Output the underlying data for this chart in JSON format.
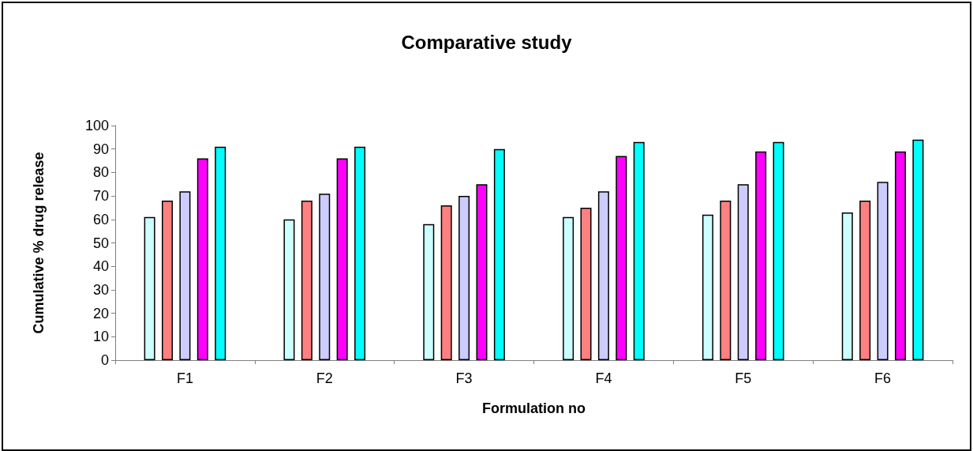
{
  "chart_data": {
    "type": "bar",
    "title": "Comparative study",
    "xlabel": "Formulation no",
    "ylabel": "Cumulative % drug release",
    "categories": [
      "F1",
      "F2",
      "F3",
      "F4",
      "F5",
      "F6"
    ],
    "series": [
      {
        "color": "#ccffff",
        "values": [
          61,
          60,
          58,
          61,
          62,
          63
        ]
      },
      {
        "color": "#ff8080",
        "values": [
          68,
          68,
          66,
          65,
          68,
          68
        ]
      },
      {
        "color": "#ccccff",
        "values": [
          72,
          71,
          70,
          72,
          75,
          76
        ]
      },
      {
        "color": "#ff00ff",
        "values": [
          86,
          86,
          75,
          87,
          89,
          89
        ]
      },
      {
        "color": "#00ffff",
        "values": [
          91,
          91,
          90,
          93,
          93,
          94
        ]
      }
    ],
    "ylim": [
      0,
      100
    ],
    "yticks": [
      0,
      10,
      20,
      30,
      40,
      50,
      60,
      70,
      80,
      90,
      100
    ],
    "grid": false
  }
}
